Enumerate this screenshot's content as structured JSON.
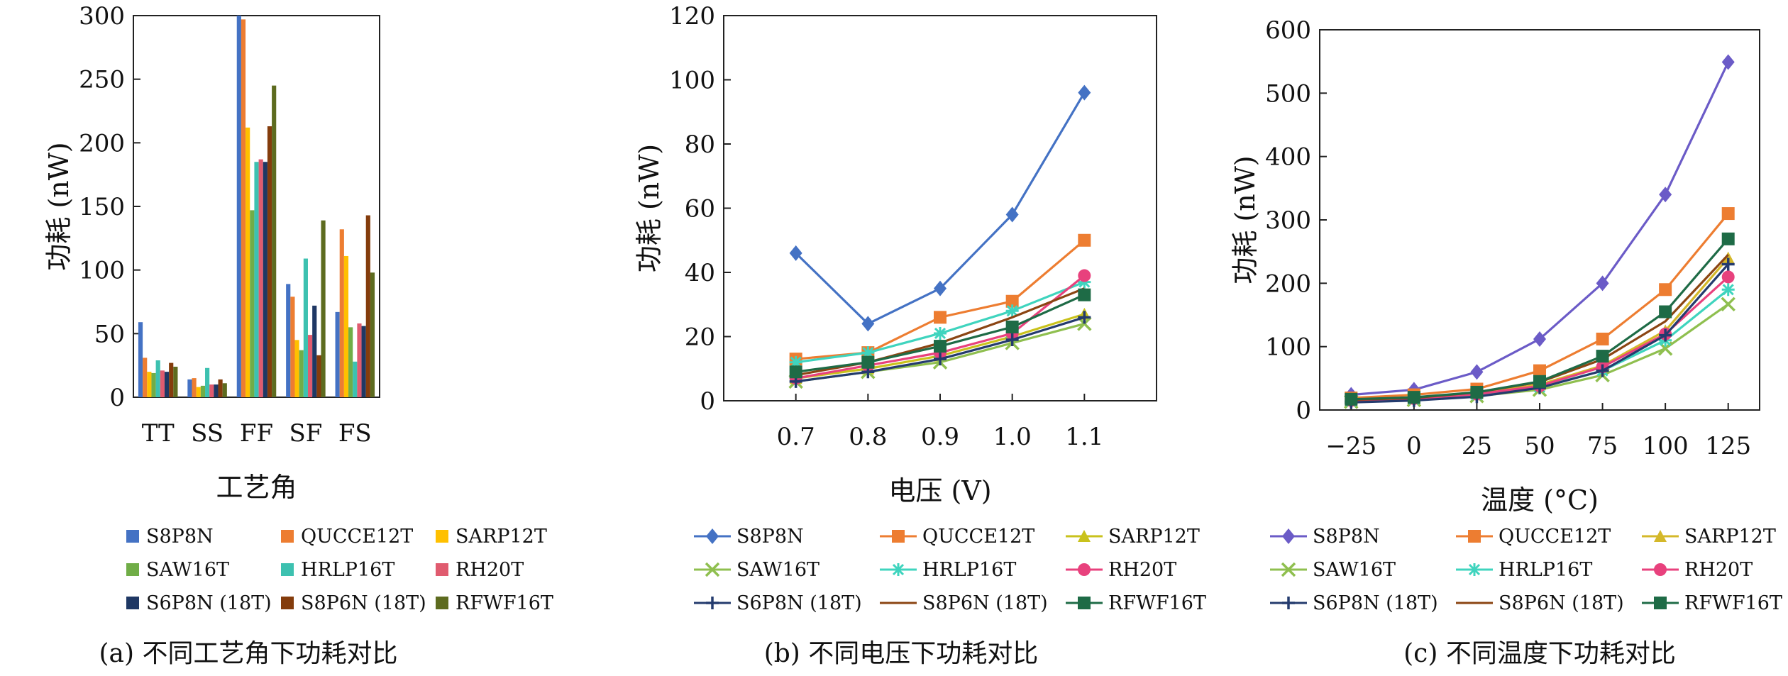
{
  "chart_data": [
    {
      "type": "bar",
      "caption": "(a) 不同工艺角下功耗对比",
      "xlabel": "工艺角",
      "ylabel": "功耗 (nW)",
      "ylim": [
        0,
        300
      ],
      "yticks": [
        0,
        50,
        100,
        150,
        200,
        250,
        300
      ],
      "categories": [
        "TT",
        "SS",
        "FF",
        "SF",
        "FS"
      ],
      "legend_position": "bottom",
      "series": [
        {
          "name": "S8P8N",
          "color": "#4472C4",
          "values": [
            59,
            14,
            300,
            89,
            67
          ]
        },
        {
          "name": "QUCCE12T",
          "color": "#ED7D31",
          "values": [
            31,
            15,
            297,
            79,
            132
          ]
        },
        {
          "name": "SARP12T",
          "color": "#FFC000",
          "values": [
            20,
            8,
            212,
            45,
            111
          ]
        },
        {
          "name": "SAW16T",
          "color": "#70AD47",
          "values": [
            19,
            9,
            147,
            37,
            55
          ]
        },
        {
          "name": "HRLP16T",
          "color": "#3DC1B0",
          "values": [
            29,
            23,
            185,
            109,
            28
          ]
        },
        {
          "name": "RH20T",
          "color": "#E05B6F",
          "values": [
            21,
            10,
            187,
            49,
            58
          ]
        },
        {
          "name": "S6P8N (18T)",
          "color": "#1F3864",
          "values": [
            20,
            10,
            185,
            72,
            56
          ]
        },
        {
          "name": "S8P6N (18T)",
          "color": "#843C0C",
          "values": [
            27,
            14,
            213,
            33,
            143
          ]
        },
        {
          "name": "RFWF16T",
          "color": "#5D6B1F",
          "values": [
            24,
            11,
            245,
            139,
            98
          ]
        }
      ]
    },
    {
      "type": "line",
      "caption": "(b) 不同电压下功耗对比",
      "xlabel": "电压 (V)",
      "ylabel": "功耗 (nW)",
      "ylim": [
        0,
        120
      ],
      "yticks": [
        0,
        20,
        40,
        60,
        80,
        100,
        120
      ],
      "x": [
        "0.7",
        "0.8",
        "0.9",
        "1.0",
        "1.1"
      ],
      "xlim": [
        0.6,
        1.2
      ],
      "legend_position": "bottom",
      "series": [
        {
          "name": "S8P8N",
          "color": "#4472C4",
          "marker": "diamond",
          "values": [
            46,
            24,
            35,
            58,
            96
          ]
        },
        {
          "name": "QUCCE12T",
          "color": "#ED7D31",
          "marker": "square",
          "values": [
            13,
            15,
            26,
            31,
            50
          ]
        },
        {
          "name": "SARP12T",
          "color": "#C9C21C",
          "marker": "triangle",
          "values": [
            7,
            10,
            14,
            20,
            27
          ]
        },
        {
          "name": "SAW16T",
          "color": "#8FBF4F",
          "marker": "x",
          "values": [
            6,
            9,
            12,
            18,
            24
          ]
        },
        {
          "name": "HRLP16T",
          "color": "#3FD4BE",
          "marker": "star",
          "values": [
            12,
            15,
            21,
            28,
            37
          ]
        },
        {
          "name": "RH20T",
          "color": "#E8417D",
          "marker": "circle",
          "values": [
            7,
            11,
            15,
            21,
            39
          ]
        },
        {
          "name": "S6P8N (18T)",
          "color": "#243B6E",
          "marker": "plus",
          "values": [
            6,
            9,
            13,
            19,
            26
          ]
        },
        {
          "name": "S8P6N (18T)",
          "color": "#8B4513",
          "marker": "none",
          "values": [
            8,
            12,
            18,
            26,
            35
          ]
        },
        {
          "name": "RFWF16T",
          "color": "#1E6B46",
          "marker": "square",
          "values": [
            9,
            12,
            17,
            23,
            33
          ]
        }
      ]
    },
    {
      "type": "line",
      "caption": "(c) 不同温度下功耗对比",
      "xlabel": "温度 (°C)",
      "ylabel": "功耗 (nW)",
      "ylim": [
        0,
        600
      ],
      "yticks": [
        0,
        100,
        200,
        300,
        400,
        500,
        600
      ],
      "x": [
        "−25",
        "0",
        "25",
        "50",
        "75",
        "100",
        "125"
      ],
      "xlim": [
        -37.5,
        137.5
      ],
      "legend_position": "bottom",
      "series": [
        {
          "name": "S8P8N",
          "color": "#6B5BC7",
          "marker": "diamond",
          "values": [
            24,
            32,
            60,
            112,
            200,
            340,
            549
          ]
        },
        {
          "name": "QUCCE12T",
          "color": "#ED7D31",
          "marker": "square",
          "values": [
            19,
            24,
            33,
            62,
            112,
            190,
            310
          ]
        },
        {
          "name": "SARP12T",
          "color": "#D4B82A",
          "marker": "triangle",
          "values": [
            15,
            18,
            26,
            40,
            70,
            125,
            240
          ]
        },
        {
          "name": "SAW16T",
          "color": "#8FBF4F",
          "marker": "x",
          "values": [
            13,
            16,
            22,
            32,
            55,
            97,
            167
          ]
        },
        {
          "name": "HRLP16T",
          "color": "#3FD4BE",
          "marker": "star",
          "values": [
            14,
            17,
            24,
            36,
            62,
            110,
            190
          ]
        },
        {
          "name": "RH20T",
          "color": "#E8417D",
          "marker": "circle",
          "values": [
            15,
            18,
            25,
            38,
            68,
            120,
            210
          ]
        },
        {
          "name": "S6P8N (18T)",
          "color": "#243B6E",
          "marker": "plus",
          "values": [
            12,
            15,
            21,
            35,
            62,
            118,
            230
          ]
        },
        {
          "name": "S8P6N (18T)",
          "color": "#8B4513",
          "marker": "none",
          "values": [
            16,
            19,
            28,
            44,
            80,
            140,
            245
          ]
        },
        {
          "name": "RFWF16T",
          "color": "#1E6B46",
          "marker": "square",
          "values": [
            17,
            20,
            28,
            45,
            85,
            155,
            270
          ]
        }
      ]
    }
  ]
}
